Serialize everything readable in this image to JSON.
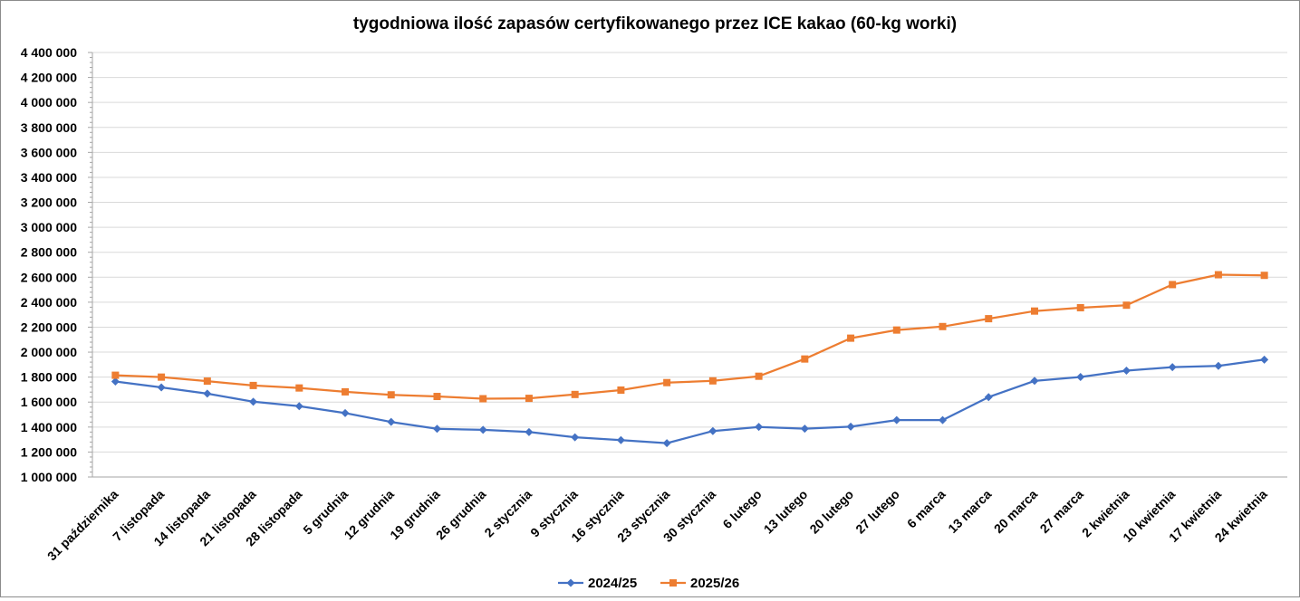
{
  "chart_data": {
    "type": "line",
    "title": "tygodniowa ilość zapasów certyfikowanego przez ICE kakao (60-kg worki)",
    "xlabel": "",
    "ylabel": "",
    "ylim": [
      1000000,
      4400000
    ],
    "ytick_values": [
      1000000,
      1200000,
      1400000,
      1600000,
      1800000,
      2000000,
      2200000,
      2400000,
      2600000,
      2800000,
      3000000,
      3200000,
      3400000,
      3600000,
      3800000,
      4000000,
      4200000,
      4400000
    ],
    "ytick_labels": [
      "1 000 000",
      "1 200 000",
      "1 400 000",
      "1 600 000",
      "1 800 000",
      "2 000 000",
      "2 200 000",
      "2 400 000",
      "2 600 000",
      "2 800 000",
      "3 000 000",
      "3 200 000",
      "3 400 000",
      "3 600 000",
      "3 800 000",
      "4 000 000",
      "4 200 000",
      "4 400 000"
    ],
    "grid": true,
    "legend_position": "bottom",
    "categories": [
      "31 października",
      "7 listopada",
      "14 listopada",
      "21 listopada",
      "28 listopada",
      "5 grudnia",
      "12 grudnia",
      "19 grudnia",
      "26 grudnia",
      "2 stycznia",
      "9 stycznia",
      "16 stycznia",
      "23 stycznia",
      "30 stycznia",
      "6 lutego",
      "13 lutego",
      "20 lutego",
      "27 lutego",
      "6 marca",
      "13 marca",
      "20 marca",
      "27 marca",
      "2 kwietnia",
      "10 kwietnia",
      "17 kwietnia",
      "24 kwietnia"
    ],
    "series": [
      {
        "name": "2024/25",
        "color": "#4472c4",
        "marker": "diamond",
        "values": [
          1765000,
          1718000,
          1668000,
          1603000,
          1567000,
          1512000,
          1441000,
          1386000,
          1378000,
          1360000,
          1318000,
          1295000,
          1271000,
          1368000,
          1401000,
          1387000,
          1403000,
          1456000,
          1456000,
          1640000,
          1770000,
          1801000,
          1852000,
          1880000,
          1890000,
          1940000
        ]
      },
      {
        "name": "2025/26",
        "color": "#ed7d31",
        "marker": "square",
        "values": [
          1815000,
          1800000,
          1768000,
          1733000,
          1713000,
          1682000,
          1658000,
          1645000,
          1627000,
          1630000,
          1661000,
          1696000,
          1756000,
          1770000,
          1807000,
          1945000,
          2112000,
          2177000,
          2205000,
          2268000,
          2329000,
          2356000,
          2376000,
          2541000,
          2620000,
          2615000
        ]
      }
    ]
  }
}
